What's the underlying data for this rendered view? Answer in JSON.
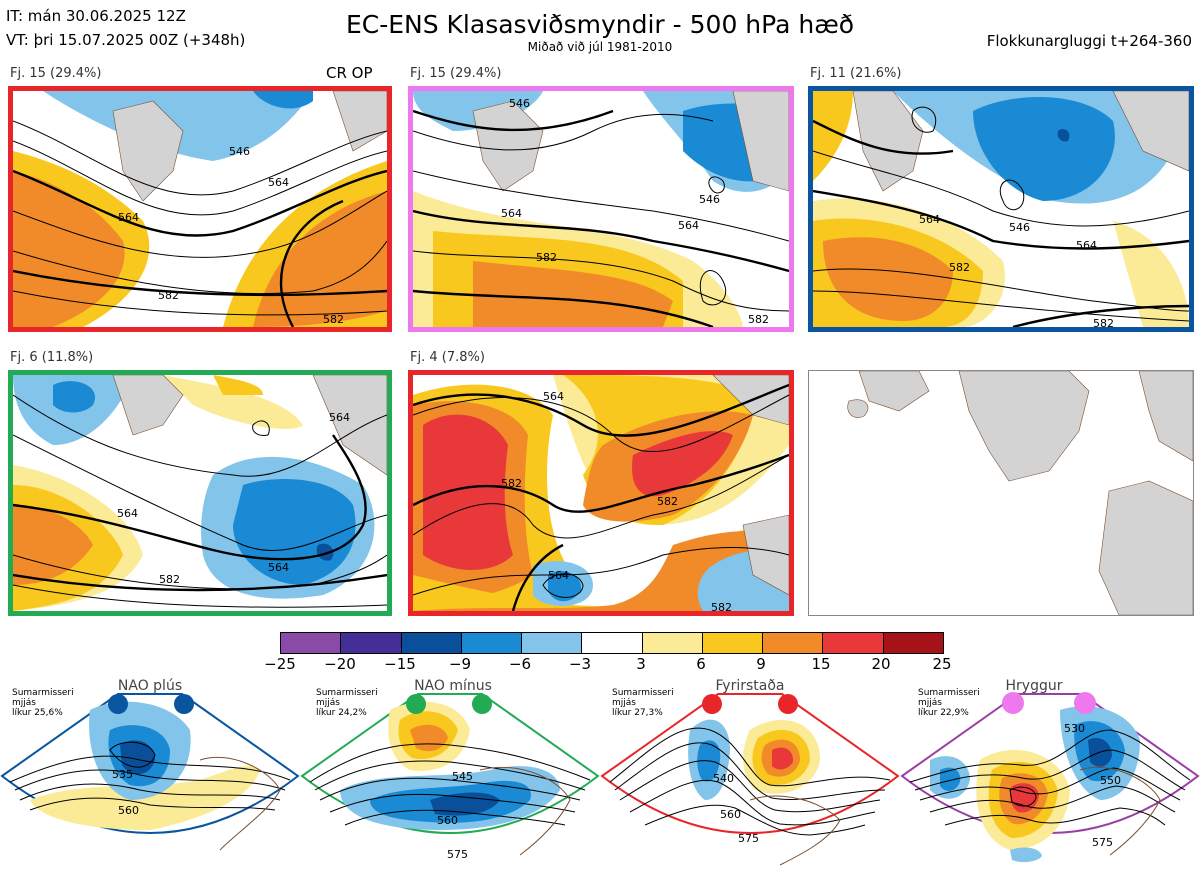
{
  "header": {
    "it_line": "IT: mán 30.06.2025 12Z",
    "vt_line": "VT: þri 15.07.2025 00Z  (+348h)",
    "title": "EC-ENS Klasasviðsmyndir - 500 hPa hæð",
    "subtitle": "Miðað við júl 1981-2010",
    "window": "Flokkunargluggi t+264-360"
  },
  "panels": [
    {
      "label": "Fj. 15 (29.4%)",
      "tag": "CR OP",
      "border": "#e8262a",
      "contours": [
        "546",
        "564",
        "564",
        "582",
        "582"
      ]
    },
    {
      "label": "Fj. 15 (29.4%)",
      "tag": "",
      "border": "#ee78ee",
      "contours": [
        "546",
        "546",
        "564",
        "564",
        "582",
        "582"
      ]
    },
    {
      "label": "Fj. 11 (21.6%)",
      "tag": "",
      "border": "#0a55a0",
      "contours": [
        "546",
        "564",
        "564",
        "582",
        "582"
      ]
    },
    {
      "label": "Fj. 6 (11.8%)",
      "tag": "",
      "border": "#22aa55",
      "contours": [
        "564",
        "564",
        "564",
        "582"
      ]
    },
    {
      "label": "Fj. 4 (7.8%)",
      "tag": "",
      "border": "#e8262a",
      "contours": [
        "564",
        "564",
        "582",
        "582",
        "582"
      ]
    }
  ],
  "colorbar": {
    "colors": [
      "#8a4aa8",
      "#452e96",
      "#0a4f9a",
      "#1a8ad4",
      "#82c4ea",
      "#ffffff",
      "#fbeb96",
      "#f9c81e",
      "#f18a28",
      "#e8383a",
      "#a51218"
    ],
    "labels": [
      "−25",
      "−20",
      "−15",
      "−9",
      "−6",
      "−3",
      "3",
      "6",
      "9",
      "15",
      "20",
      "25"
    ]
  },
  "regimes": [
    {
      "name": "NAO plús",
      "season": "Sumarmisseri",
      "smooth": "mjjás",
      "prob": "líkur 25,6%",
      "color": "#0a55a0",
      "contours": [
        "535",
        "560"
      ]
    },
    {
      "name": "NAO mínus",
      "season": "Sumarmisseri",
      "smooth": "mjjás",
      "prob": "líkur 24,2%",
      "color": "#22aa55",
      "contours": [
        "545",
        "560",
        "575"
      ]
    },
    {
      "name": "Fyrirstaða",
      "season": "Sumarmisseri",
      "smooth": "mjjás",
      "prob": "líkur 27,3%",
      "color": "#e8262a",
      "contours": [
        "540",
        "560",
        "575"
      ]
    },
    {
      "name": "Hryggur",
      "season": "Sumarmisseri",
      "smooth": "mjjás",
      "prob": "líkur 22,9%",
      "color": "#9b3ea3",
      "contours": [
        "530",
        "550",
        "575"
      ]
    }
  ]
}
